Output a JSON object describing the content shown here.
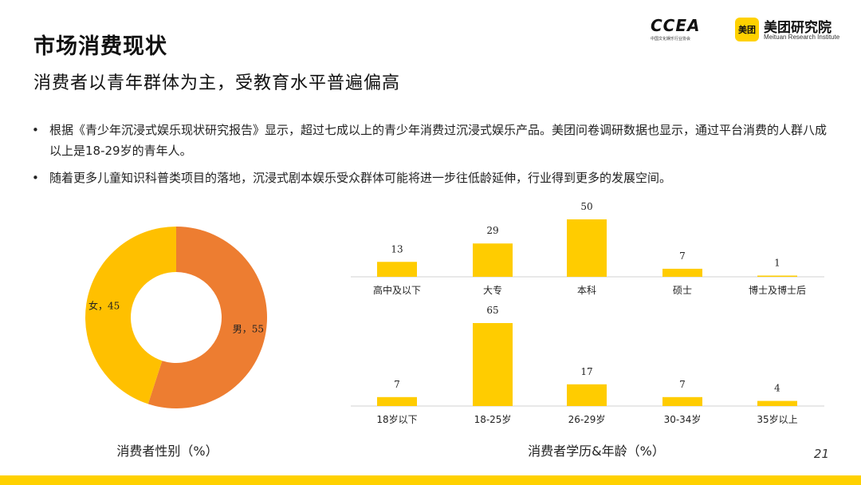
{
  "page": {
    "title": "市场消费现状",
    "subtitle": "消费者以青年群体为主，受教育水平普遍偏高",
    "page_number": "21"
  },
  "logos": {
    "ccea_mark": "CCEA",
    "ccea_sub": "中国文化娱乐行业协会",
    "meituan_box": "美团",
    "meituan_name": "美团研究院",
    "meituan_en": "Meituan Research Institute"
  },
  "bullets": [
    "根据《青少年沉浸式娱乐现状研究报告》显示，超过七成以上的青少年消费过沉浸式娱乐产品。美团问卷调研数据也显示，通过平台消费的人群八成以上是18-29岁的青年人。",
    "随着更多儿童知识科普类项目的落地，沉浸式剧本娱乐受众群体可能将进一步往低龄延伸，行业得到更多的发展空间。"
  ],
  "bullet_marker": "•",
  "chart_data": [
    {
      "type": "pie",
      "title": "消费者性别（%）",
      "labels": [
        "男",
        "女"
      ],
      "values": [
        55,
        45
      ],
      "slice_labels": [
        "男，55",
        "女，45"
      ],
      "colors": [
        "#ed7d31",
        "#ffc000"
      ]
    },
    {
      "type": "bar",
      "title": "消费者学历&年龄（%）",
      "categories": [
        "高中及以下",
        "大专",
        "本科",
        "硕士",
        "博士及博士后"
      ],
      "values": [
        13,
        29,
        50,
        7,
        1
      ],
      "color": "#ffcc00",
      "ylim": [
        0,
        50
      ]
    },
    {
      "type": "bar",
      "title": "",
      "categories": [
        "18岁以下",
        "18-25岁",
        "26-29岁",
        "30-34岁",
        "35岁以上"
      ],
      "values": [
        7,
        65,
        17,
        7,
        4
      ],
      "color": "#ffcc00",
      "ylim": [
        0,
        65
      ]
    }
  ],
  "colors": {
    "accent": "#ffd100",
    "bar": "#ffcc00"
  }
}
